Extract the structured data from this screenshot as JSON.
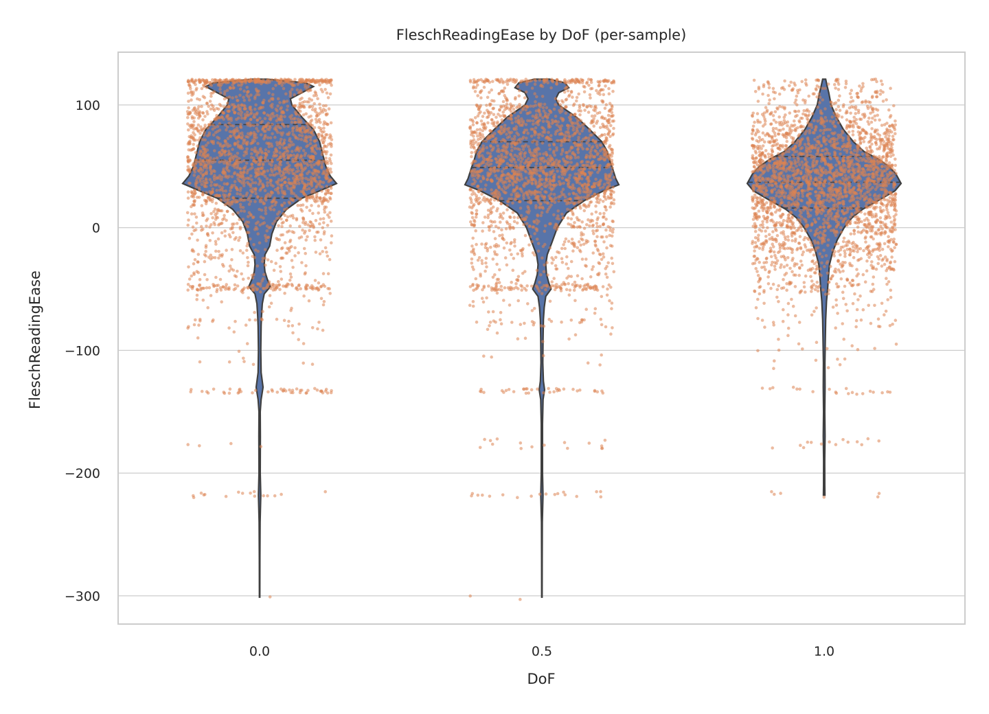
{
  "chart_data": {
    "type": "violin",
    "title": "FleschReadingEase by DoF (per-sample)",
    "xlabel": "DoF",
    "ylabel": "FleschReadingEase",
    "categories": [
      "0.0",
      "0.5",
      "1.0"
    ],
    "ylim": [
      -323,
      143
    ],
    "yticks": [
      100,
      0,
      -100,
      -200,
      -300
    ],
    "ytick_labels": [
      "100",
      "0",
      "−100",
      "−200",
      "−300"
    ],
    "grid": "horizontal",
    "colors": {
      "violin": "#5874a9",
      "points": "#dd8452",
      "edge": "#3f3f3f"
    },
    "series": [
      {
        "category": "0.0",
        "min": -301,
        "max": 121,
        "quartiles": [
          24,
          55,
          84
        ],
        "density": [
          [
            121,
            0.1
          ],
          [
            118,
            0.6
          ],
          [
            115,
            0.7
          ],
          [
            110,
            0.55
          ],
          [
            105,
            0.4
          ],
          [
            100,
            0.42
          ],
          [
            90,
            0.55
          ],
          [
            80,
            0.7
          ],
          [
            70,
            0.78
          ],
          [
            60,
            0.82
          ],
          [
            50,
            0.86
          ],
          [
            42,
            0.92
          ],
          [
            36,
            1.0
          ],
          [
            30,
            0.78
          ],
          [
            24,
            0.55
          ],
          [
            15,
            0.35
          ],
          [
            5,
            0.22
          ],
          [
            -5,
            0.16
          ],
          [
            -15,
            0.13
          ],
          [
            -22,
            0.07
          ],
          [
            -30,
            0.06
          ],
          [
            -36,
            0.07
          ],
          [
            -42,
            0.1
          ],
          [
            -48,
            0.14
          ],
          [
            -54,
            0.06
          ],
          [
            -62,
            0.035
          ],
          [
            -72,
            0.025
          ],
          [
            -80,
            0.02
          ],
          [
            -100,
            0.015
          ],
          [
            -118,
            0.02
          ],
          [
            -130,
            0.045
          ],
          [
            -140,
            0.02
          ],
          [
            -150,
            0.008
          ],
          [
            -170,
            0.01
          ],
          [
            -200,
            0.008
          ],
          [
            -218,
            0.015
          ],
          [
            -240,
            0.006
          ],
          [
            -270,
            0.004
          ],
          [
            -301,
            0.003
          ]
        ]
      },
      {
        "category": "0.5",
        "min": -301,
        "max": 121,
        "quartiles": [
          22,
          49,
          70
        ],
        "density": [
          [
            121,
            0.1
          ],
          [
            118,
            0.3
          ],
          [
            114,
            0.35
          ],
          [
            110,
            0.22
          ],
          [
            105,
            0.18
          ],
          [
            100,
            0.22
          ],
          [
            90,
            0.45
          ],
          [
            80,
            0.62
          ],
          [
            70,
            0.78
          ],
          [
            62,
            0.85
          ],
          [
            55,
            0.88
          ],
          [
            48,
            0.92
          ],
          [
            40,
            0.96
          ],
          [
            35,
            1.0
          ],
          [
            30,
            0.8
          ],
          [
            22,
            0.55
          ],
          [
            12,
            0.32
          ],
          [
            0,
            0.2
          ],
          [
            -12,
            0.13
          ],
          [
            -22,
            0.07
          ],
          [
            -30,
            0.05
          ],
          [
            -38,
            0.06
          ],
          [
            -45,
            0.09
          ],
          [
            -50,
            0.12
          ],
          [
            -56,
            0.05
          ],
          [
            -65,
            0.03
          ],
          [
            -75,
            0.02
          ],
          [
            -90,
            0.015
          ],
          [
            -110,
            0.012
          ],
          [
            -125,
            0.02
          ],
          [
            -132,
            0.035
          ],
          [
            -140,
            0.015
          ],
          [
            -160,
            0.008
          ],
          [
            -180,
            0.008
          ],
          [
            -200,
            0.008
          ],
          [
            -218,
            0.014
          ],
          [
            -240,
            0.005
          ],
          [
            -270,
            0.004
          ],
          [
            -301,
            0.003
          ]
        ]
      },
      {
        "category": "1.0",
        "min": -218,
        "max": 121,
        "quartiles": [
          16,
          37,
          58
        ],
        "density": [
          [
            121,
            0.02
          ],
          [
            115,
            0.04
          ],
          [
            110,
            0.06
          ],
          [
            100,
            0.09
          ],
          [
            90,
            0.16
          ],
          [
            80,
            0.25
          ],
          [
            70,
            0.38
          ],
          [
            62,
            0.52
          ],
          [
            56,
            0.7
          ],
          [
            50,
            0.84
          ],
          [
            44,
            0.93
          ],
          [
            36,
            1.0
          ],
          [
            30,
            0.92
          ],
          [
            22,
            0.7
          ],
          [
            15,
            0.5
          ],
          [
            8,
            0.36
          ],
          [
            0,
            0.26
          ],
          [
            -10,
            0.17
          ],
          [
            -20,
            0.11
          ],
          [
            -30,
            0.07
          ],
          [
            -40,
            0.055
          ],
          [
            -50,
            0.045
          ],
          [
            -60,
            0.03
          ],
          [
            -75,
            0.02
          ],
          [
            -90,
            0.015
          ],
          [
            -110,
            0.01
          ],
          [
            -130,
            0.012
          ],
          [
            -150,
            0.008
          ],
          [
            -170,
            0.012
          ],
          [
            -190,
            0.007
          ],
          [
            -210,
            0.008
          ],
          [
            -218,
            0.01
          ]
        ]
      }
    ],
    "points_by_category": [
      {
        "category": "0.0",
        "bands": [
          [
            118,
            121,
            220
          ],
          [
            100,
            118,
            160
          ],
          [
            80,
            100,
            320
          ],
          [
            55,
            80,
            420
          ],
          [
            35,
            55,
            420
          ],
          [
            20,
            35,
            260
          ],
          [
            0,
            20,
            170
          ],
          [
            -25,
            0,
            130
          ],
          [
            -46,
            -25,
            70
          ],
          [
            -51,
            -46,
            110
          ],
          [
            -70,
            -51,
            25
          ],
          [
            -82,
            -74,
            24
          ],
          [
            -95,
            -82,
            8
          ],
          [
            -112,
            -100,
            8
          ],
          [
            -135,
            -131,
            48
          ],
          [
            -180,
            -172,
            4
          ],
          [
            -220,
            -215,
            16
          ],
          [
            -303,
            -300,
            1
          ]
        ]
      },
      {
        "category": "0.5",
        "bands": [
          [
            118,
            121,
            120
          ],
          [
            100,
            118,
            110
          ],
          [
            80,
            100,
            300
          ],
          [
            55,
            80,
            420
          ],
          [
            35,
            55,
            440
          ],
          [
            20,
            35,
            280
          ],
          [
            0,
            20,
            190
          ],
          [
            -25,
            0,
            140
          ],
          [
            -46,
            -25,
            80
          ],
          [
            -51,
            -46,
            100
          ],
          [
            -70,
            -51,
            30
          ],
          [
            -82,
            -74,
            28
          ],
          [
            -95,
            -82,
            8
          ],
          [
            -112,
            -100,
            6
          ],
          [
            -135,
            -131,
            34
          ],
          [
            -180,
            -172,
            16
          ],
          [
            -220,
            -215,
            18
          ],
          [
            -303,
            -300,
            2
          ]
        ]
      },
      {
        "category": "1.0",
        "bands": [
          [
            110,
            121,
            70
          ],
          [
            95,
            110,
            90
          ],
          [
            80,
            95,
            170
          ],
          [
            60,
            80,
            380
          ],
          [
            40,
            60,
            520
          ],
          [
            20,
            40,
            520
          ],
          [
            0,
            20,
            380
          ],
          [
            -20,
            0,
            260
          ],
          [
            -35,
            -20,
            130
          ],
          [
            -55,
            -35,
            110
          ],
          [
            -75,
            -55,
            35
          ],
          [
            -82,
            -75,
            18
          ],
          [
            -100,
            -86,
            12
          ],
          [
            -115,
            -100,
            8
          ],
          [
            -136,
            -130,
            20
          ],
          [
            -180,
            -172,
            14
          ],
          [
            -220,
            -215,
            6
          ]
        ]
      }
    ]
  }
}
